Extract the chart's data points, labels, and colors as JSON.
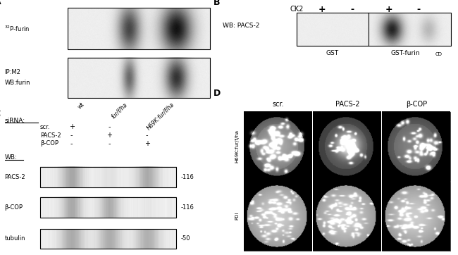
{
  "bg_color": "#ffffff",
  "panel_A": {
    "label": "A",
    "top_label": "32P-furin",
    "bottom_label_1": "IP:M2",
    "bottom_label_2": "WB:furin",
    "x_labels": [
      "wt",
      "fur/f/ha",
      "H69K:fur/f/ha"
    ]
  },
  "panel_B": {
    "label": "B",
    "ck2_label": "CK2",
    "ck2_values": [
      "+",
      "-",
      "+",
      "-"
    ],
    "wb_label": "WB: PACS-2",
    "gst_label": "GST",
    "gst_furin_label": "GST-furin",
    "gst_furin_sub": "CD"
  },
  "panel_C": {
    "label": "C",
    "sirna_label": "siRNA:",
    "sirna_rows": [
      "scr.",
      "PACS-2",
      "β-COP"
    ],
    "sirna_signs": [
      [
        "+",
        "-",
        "-"
      ],
      [
        "-",
        "+",
        "-"
      ],
      [
        "-",
        "-",
        "+"
      ]
    ],
    "wb_label": "WB:",
    "wb_rows": [
      "PACS-2",
      "β-COP",
      "tubulin"
    ],
    "mw_markers": [
      "-116",
      "-116",
      "-50"
    ]
  },
  "panel_D": {
    "label": "D",
    "col_labels": [
      "scr.",
      "PACS-2",
      "β-COP"
    ],
    "row_labels": [
      "H69K:fur/f/ha",
      "PDI"
    ]
  }
}
